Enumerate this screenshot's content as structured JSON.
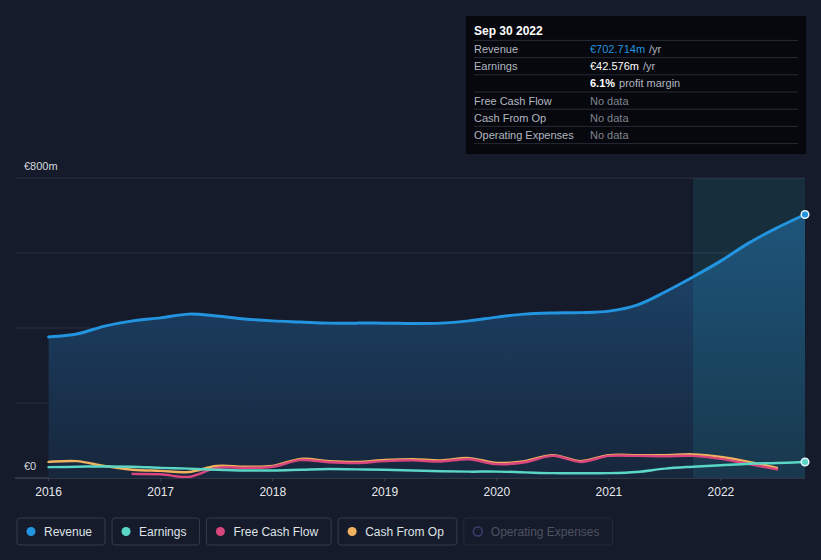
{
  "chart_data": {
    "type": "line",
    "x": [
      2016,
      2016.25,
      2016.5,
      2016.75,
      2017,
      2017.25,
      2017.5,
      2017.75,
      2018,
      2018.25,
      2018.5,
      2018.75,
      2019,
      2019.25,
      2019.5,
      2019.75,
      2020,
      2020.25,
      2020.5,
      2020.75,
      2021,
      2021.25,
      2021.5,
      2021.75,
      2022,
      2022.25,
      2022.5,
      2022.75
    ],
    "series": [
      {
        "name": "Revenue",
        "color": "#2394df",
        "type": "area",
        "values": [
          376,
          384,
          405,
          419,
          427,
          437,
          432,
          424,
          419,
          416,
          413,
          413,
          413,
          412,
          413,
          419,
          429,
          437,
          440,
          441,
          445,
          461,
          496,
          536,
          579,
          627,
          667,
          702.714
        ]
      },
      {
        "name": "Earnings",
        "color": "#5ad6c6",
        "type": "line",
        "values": [
          29,
          30,
          31,
          30,
          27,
          25,
          22,
          20,
          20,
          22,
          24,
          23,
          22,
          20,
          18,
          17,
          17,
          15,
          13,
          13,
          13,
          16,
          25,
          30,
          34,
          38,
          40,
          42.576
        ]
      },
      {
        "name": "Free Cash Flow",
        "color": "#d9467d",
        "type": "line",
        "values": [
          null,
          null,
          null,
          11,
          10,
          3,
          27,
          27,
          30,
          48,
          42,
          40,
          45,
          47,
          44,
          50,
          37,
          42,
          59,
          43,
          59,
          59,
          58,
          59,
          51,
          37,
          23,
          null
        ]
      },
      {
        "name": "Cash From Op",
        "color": "#f0b25f",
        "type": "line",
        "values": [
          43,
          45,
          32,
          22,
          19,
          16,
          32,
          30,
          32,
          51,
          45,
          43,
          48,
          50,
          47,
          53,
          40,
          45,
          61,
          45,
          61,
          61,
          61,
          63,
          56,
          43,
          27,
          null
        ]
      },
      {
        "name": "Operating Expenses",
        "color": "#3a3f70",
        "type": "line",
        "values": [
          null,
          null,
          null,
          null,
          null,
          null,
          null,
          null,
          null,
          null,
          null,
          null,
          null,
          null,
          null,
          null,
          null,
          null,
          null,
          null,
          null,
          null,
          null,
          null,
          null,
          null,
          null,
          null
        ]
      }
    ],
    "xlim": [
      2015.7,
      2022.75
    ],
    "xticks": [
      2016,
      2017,
      2018,
      2019,
      2020,
      2021,
      2022
    ],
    "ylim": [
      0,
      800
    ],
    "yticks": [
      {
        "value": 0,
        "label": "€0"
      },
      {
        "value": 200,
        "label": null
      },
      {
        "value": 400,
        "label": null
      },
      {
        "value": 600,
        "label": null
      },
      {
        "value": 800,
        "label": "€800m"
      }
    ],
    "grid": true,
    "legend": "bottom-left",
    "highlight_x": [
      2021.75,
      2022.75
    ],
    "tooltip": {
      "title": "Sep 30 2022",
      "rows": [
        {
          "label": "Revenue",
          "value": "€702.714m",
          "unit": "/yr",
          "color": "#2394df"
        },
        {
          "label": "Earnings",
          "value": "€42.576m",
          "unit": "/yr",
          "color": "#ffffff"
        },
        {
          "value": "6.1%",
          "unit": "profit margin",
          "color": "#ffffff"
        },
        {
          "label": "Free Cash Flow",
          "value": "No data",
          "color": "#80858f"
        },
        {
          "label": "Cash From Op",
          "value": "No data",
          "color": "#80858f"
        },
        {
          "label": "Operating Expenses",
          "value": "No data",
          "color": "#80858f"
        }
      ]
    }
  }
}
